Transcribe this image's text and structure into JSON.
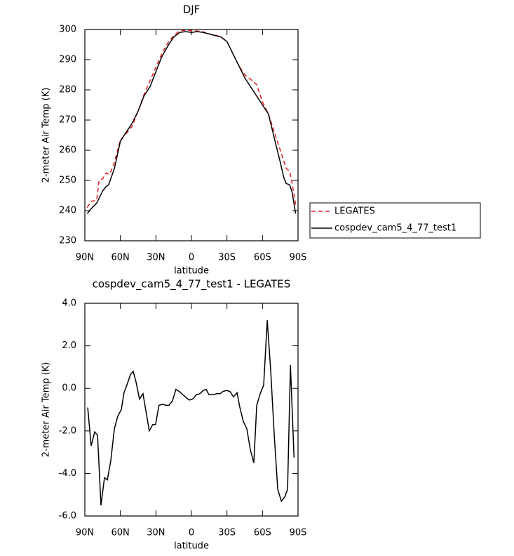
{
  "chart_data": [
    {
      "type": "line",
      "title": "DJF",
      "xlabel": "latitude",
      "ylabel": "2-meter Air Temp (K)",
      "xlim": [
        90,
        -90
      ],
      "xticks": [
        {
          "value": 90,
          "label": "90N"
        },
        {
          "value": 60,
          "label": "60N"
        },
        {
          "value": 30,
          "label": "30N"
        },
        {
          "value": 0,
          "label": "0"
        },
        {
          "value": -30,
          "label": "30S"
        },
        {
          "value": -60,
          "label": "60S"
        },
        {
          "value": -90,
          "label": "90S"
        }
      ],
      "ylim": [
        230,
        300
      ],
      "yticks": [
        230,
        240,
        250,
        260,
        270,
        280,
        290,
        300
      ],
      "legend": "right",
      "series": [
        {
          "name": "LEGATES",
          "color": "#e41a1c",
          "dash": true,
          "x": [
            88,
            85,
            80,
            78,
            75,
            72,
            70,
            68,
            65,
            60,
            55,
            50,
            45,
            40,
            35,
            30,
            25,
            20,
            15,
            10,
            5,
            0,
            -5,
            -10,
            -15,
            -20,
            -25,
            -30,
            -35,
            -40,
            -45,
            -50,
            -55,
            -60,
            -65,
            -70,
            -75,
            -80,
            -83,
            -85,
            -88
          ],
          "values": [
            241,
            243,
            243.5,
            250,
            250.5,
            252.5,
            252,
            253,
            256,
            263.5,
            265.5,
            268,
            273,
            278.5,
            283,
            287.5,
            292,
            295.5,
            298,
            299.5,
            299.8,
            299.6,
            299.5,
            299.2,
            298.5,
            298.2,
            297.5,
            296,
            292,
            288,
            285,
            283.5,
            281.8,
            276,
            272,
            266,
            260,
            254,
            253,
            249,
            242
          ]
        },
        {
          "name": "cospdev_cam5_4_77_test1",
          "color": "#000000",
          "dash": false,
          "x": [
            88,
            85,
            80,
            75,
            72,
            70,
            65,
            60,
            55,
            50,
            45,
            40,
            35,
            30,
            25,
            20,
            15,
            10,
            5,
            0,
            -5,
            -10,
            -15,
            -20,
            -25,
            -30,
            -35,
            -40,
            -45,
            -50,
            -55,
            -60,
            -65,
            -70,
            -75,
            -78,
            -80,
            -83,
            -85,
            -88
          ],
          "values": [
            239,
            240.5,
            242.5,
            246.5,
            248,
            248.5,
            254,
            263,
            266,
            269,
            273,
            278,
            281,
            286,
            291,
            294.5,
            297.5,
            299,
            299.3,
            299,
            299.3,
            299,
            298.5,
            298,
            297.5,
            296,
            292,
            288,
            284,
            281,
            278,
            275,
            272,
            264,
            256,
            251,
            249,
            248.5,
            246,
            239
          ]
        }
      ]
    },
    {
      "type": "line",
      "title": "cospdev_cam5_4_77_test1 - LEGATES",
      "xlabel": "latitude",
      "ylabel": "2-meter Air Temp (K)",
      "xlim": [
        90,
        -90
      ],
      "xticks": [
        {
          "value": 90,
          "label": "90N"
        },
        {
          "value": 60,
          "label": "60N"
        },
        {
          "value": 30,
          "label": "30N"
        },
        {
          "value": 0,
          "label": "0"
        },
        {
          "value": -30,
          "label": "30S"
        },
        {
          "value": -60,
          "label": "60S"
        },
        {
          "value": -90,
          "label": "90S"
        }
      ],
      "ylim": [
        -6,
        4
      ],
      "yticks": [
        {
          "value": -6,
          "label": "-6.0"
        },
        {
          "value": -4,
          "label": "-4.0"
        },
        {
          "value": -2,
          "label": "-2.0"
        },
        {
          "value": 0,
          "label": "0.0"
        },
        {
          "value": 2,
          "label": "2.0"
        },
        {
          "value": 4,
          "label": "4.0"
        }
      ],
      "series": [
        {
          "color": "#000000",
          "dash": false,
          "x": [
            87.6,
            84.7,
            81.7,
            79.3,
            76.4,
            73.4,
            71,
            68.1,
            65.1,
            62.2,
            59.2,
            56.9,
            53.3,
            51.5,
            49.2,
            46.8,
            43.9,
            40.9,
            38,
            35.6,
            32.6,
            30.3,
            27.4,
            24.4,
            21.4,
            19,
            16.1,
            13.1,
            10.2,
            7.2,
            4.2,
            1.8,
            -1.2,
            -4.1,
            -7.1,
            -10,
            -12.4,
            -14.8,
            -18.3,
            -21.3,
            -24.3,
            -26.6,
            -29.6,
            -32.5,
            -35.5,
            -38.5,
            -40.9,
            -43.8,
            -46.8,
            -49.8,
            -52.7,
            -55.1,
            -58.1,
            -61,
            -64,
            -67,
            -69.9,
            -72.9,
            -75.9,
            -78.8,
            -81.2,
            -83.6,
            -86.6
          ],
          "values": [
            -0.9,
            -2.7,
            -2.05,
            -2.2,
            -5.5,
            -4.2,
            -4.3,
            -3.4,
            -1.9,
            -1.3,
            -1,
            -0.2,
            0.35,
            0.65,
            0.8,
            0.3,
            -0.5,
            -0.25,
            -1.2,
            -2,
            -1.7,
            -1.7,
            -0.8,
            -0.75,
            -0.8,
            -0.8,
            -0.6,
            -0.05,
            -0.15,
            -0.3,
            -0.45,
            -0.55,
            -0.5,
            -0.3,
            -0.25,
            -0.1,
            -0.05,
            -0.3,
            -0.3,
            -0.25,
            -0.25,
            -0.15,
            -0.1,
            -0.15,
            -0.4,
            -0.2,
            -0.9,
            -1.55,
            -1.9,
            -2.9,
            -3.5,
            -0.8,
            -0.25,
            0.15,
            3.2,
            0.75,
            -2.2,
            -4.75,
            -5.3,
            -5.1,
            -4.75,
            1.1,
            -3.25
          ]
        }
      ]
    }
  ]
}
